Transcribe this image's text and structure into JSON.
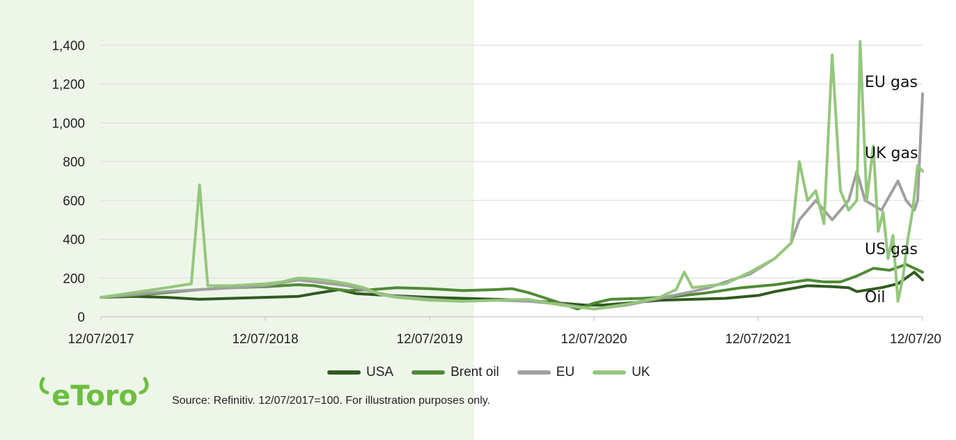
{
  "brand": {
    "logo_text": "eToro",
    "logo_color": "#6cbf3f"
  },
  "source_note": "Source: Refinitiv. 12/07/2017=100. For illustration purposes only.",
  "annotations": {
    "eu_gas": "EU gas",
    "uk_gas": "UK gas",
    "us_gas": "US gas",
    "oil": "Oil"
  },
  "chart_data": {
    "type": "line",
    "title": "",
    "xlabel": "",
    "ylabel": "",
    "ylim": [
      0,
      1400
    ],
    "yticks": [
      0,
      200,
      400,
      600,
      800,
      1000,
      1200,
      1400
    ],
    "ytick_labels": [
      "0",
      "200",
      "400",
      "600",
      "800",
      "1,000",
      "1,200",
      "1,400"
    ],
    "xlim": [
      0,
      5
    ],
    "xticks": [
      0,
      1,
      2,
      3,
      4,
      5
    ],
    "xtick_labels": [
      "12/07/2017",
      "12/07/2018",
      "12/07/2019",
      "12/07/2020",
      "12/07/2021",
      "12/07/20"
    ],
    "grid": "horizontal",
    "legend": "bottom",
    "series": [
      {
        "name": "USA",
        "color": "#2f5a1f",
        "points": [
          [
            0,
            100
          ],
          [
            0.2,
            105
          ],
          [
            0.4,
            100
          ],
          [
            0.6,
            90
          ],
          [
            0.8,
            95
          ],
          [
            1.0,
            100
          ],
          [
            1.2,
            105
          ],
          [
            1.3,
            120
          ],
          [
            1.45,
            140
          ],
          [
            1.55,
            120
          ],
          [
            1.75,
            110
          ],
          [
            2.0,
            100
          ],
          [
            2.2,
            95
          ],
          [
            2.4,
            90
          ],
          [
            2.6,
            85
          ],
          [
            2.8,
            70
          ],
          [
            2.95,
            60
          ],
          [
            3.05,
            60
          ],
          [
            3.2,
            70
          ],
          [
            3.4,
            85
          ],
          [
            3.6,
            90
          ],
          [
            3.8,
            95
          ],
          [
            4.0,
            110
          ],
          [
            4.1,
            130
          ],
          [
            4.3,
            160
          ],
          [
            4.45,
            155
          ],
          [
            4.55,
            150
          ],
          [
            4.6,
            130
          ],
          [
            4.75,
            150
          ],
          [
            4.85,
            170
          ],
          [
            4.95,
            230
          ],
          [
            5.0,
            190
          ]
        ]
      },
      {
        "name": "Brent oil",
        "color": "#4f8a34",
        "points": [
          [
            0,
            100
          ],
          [
            0.2,
            110
          ],
          [
            0.4,
            125
          ],
          [
            0.6,
            140
          ],
          [
            0.8,
            150
          ],
          [
            1.0,
            155
          ],
          [
            1.2,
            165
          ],
          [
            1.3,
            160
          ],
          [
            1.4,
            145
          ],
          [
            1.5,
            135
          ],
          [
            1.65,
            140
          ],
          [
            1.8,
            150
          ],
          [
            2.0,
            145
          ],
          [
            2.2,
            135
          ],
          [
            2.4,
            140
          ],
          [
            2.5,
            145
          ],
          [
            2.6,
            125
          ],
          [
            2.8,
            70
          ],
          [
            2.9,
            40
          ],
          [
            3.0,
            70
          ],
          [
            3.1,
            90
          ],
          [
            3.3,
            95
          ],
          [
            3.5,
            105
          ],
          [
            3.7,
            125
          ],
          [
            3.9,
            150
          ],
          [
            4.1,
            165
          ],
          [
            4.3,
            190
          ],
          [
            4.4,
            180
          ],
          [
            4.5,
            180
          ],
          [
            4.6,
            210
          ],
          [
            4.7,
            250
          ],
          [
            4.8,
            240
          ],
          [
            4.9,
            270
          ],
          [
            5.0,
            230
          ]
        ]
      },
      {
        "name": "EU",
        "color": "#a0a0a0",
        "points": [
          [
            0,
            100
          ],
          [
            0.2,
            115
          ],
          [
            0.4,
            130
          ],
          [
            0.6,
            140
          ],
          [
            0.8,
            150
          ],
          [
            1.0,
            160
          ],
          [
            1.1,
            175
          ],
          [
            1.2,
            190
          ],
          [
            1.3,
            180
          ],
          [
            1.4,
            170
          ],
          [
            1.5,
            160
          ],
          [
            1.6,
            140
          ],
          [
            1.7,
            120
          ],
          [
            1.8,
            105
          ],
          [
            2.0,
            90
          ],
          [
            2.2,
            80
          ],
          [
            2.4,
            85
          ],
          [
            2.6,
            80
          ],
          [
            2.8,
            65
          ],
          [
            3.0,
            40
          ],
          [
            3.2,
            60
          ],
          [
            3.4,
            95
          ],
          [
            3.6,
            130
          ],
          [
            3.7,
            150
          ],
          [
            3.8,
            180
          ],
          [
            3.95,
            220
          ],
          [
            4.1,
            300
          ],
          [
            4.2,
            380
          ],
          [
            4.25,
            500
          ],
          [
            4.35,
            600
          ],
          [
            4.45,
            500
          ],
          [
            4.55,
            600
          ],
          [
            4.6,
            750
          ],
          [
            4.65,
            600
          ],
          [
            4.75,
            550
          ],
          [
            4.85,
            700
          ],
          [
            4.9,
            600
          ],
          [
            4.95,
            550
          ],
          [
            4.97,
            600
          ],
          [
            5.0,
            1150
          ]
        ]
      },
      {
        "name": "UK",
        "color": "#94c77b",
        "points": [
          [
            0,
            100
          ],
          [
            0.2,
            125
          ],
          [
            0.4,
            150
          ],
          [
            0.55,
            170
          ],
          [
            0.6,
            680
          ],
          [
            0.65,
            160
          ],
          [
            0.8,
            160
          ],
          [
            1.0,
            170
          ],
          [
            1.1,
            180
          ],
          [
            1.2,
            200
          ],
          [
            1.3,
            195
          ],
          [
            1.4,
            185
          ],
          [
            1.5,
            170
          ],
          [
            1.6,
            150
          ],
          [
            1.7,
            115
          ],
          [
            1.8,
            100
          ],
          [
            2.0,
            85
          ],
          [
            2.2,
            80
          ],
          [
            2.4,
            85
          ],
          [
            2.6,
            90
          ],
          [
            2.8,
            60
          ],
          [
            3.0,
            40
          ],
          [
            3.2,
            65
          ],
          [
            3.4,
            100
          ],
          [
            3.5,
            140
          ],
          [
            3.55,
            230
          ],
          [
            3.6,
            150
          ],
          [
            3.8,
            170
          ],
          [
            3.95,
            230
          ],
          [
            4.1,
            300
          ],
          [
            4.2,
            380
          ],
          [
            4.25,
            800
          ],
          [
            4.3,
            600
          ],
          [
            4.35,
            650
          ],
          [
            4.4,
            480
          ],
          [
            4.45,
            1350
          ],
          [
            4.5,
            650
          ],
          [
            4.55,
            550
          ],
          [
            4.6,
            600
          ],
          [
            4.62,
            1420
          ],
          [
            4.66,
            600
          ],
          [
            4.7,
            880
          ],
          [
            4.73,
            440
          ],
          [
            4.76,
            540
          ],
          [
            4.79,
            300
          ],
          [
            4.82,
            420
          ],
          [
            4.85,
            80
          ],
          [
            4.88,
            200
          ],
          [
            4.91,
            400
          ],
          [
            4.94,
            550
          ],
          [
            4.97,
            780
          ],
          [
            5.0,
            750
          ]
        ]
      }
    ]
  }
}
